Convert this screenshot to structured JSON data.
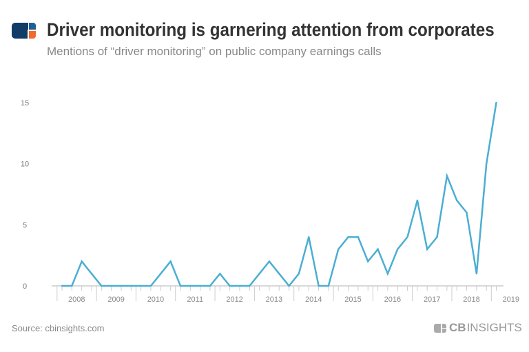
{
  "header": {
    "title": "Driver monitoring is garnering attention from corporates",
    "subtitle": "Mentions of “driver monitoring” on public company earnings calls"
  },
  "footer": {
    "source": "Source: cbinsights.com",
    "brand_bold": "CB",
    "brand_light": "INSIGHTS"
  },
  "colors": {
    "line": "#4aaed3",
    "logo_navy": "#123c68",
    "logo_blue": "#1f5f98",
    "logo_orange": "#f26a2e"
  },
  "chart_data": {
    "type": "line",
    "title": "Driver monitoring is garnering attention from corporates",
    "subtitle": "Mentions of “driver monitoring” on public company earnings calls",
    "xlabel": "",
    "ylabel": "",
    "frequency": "quarterly",
    "x_tick_labels": [
      "2008",
      "2009",
      "2010",
      "2011",
      "2012",
      "2013",
      "2014",
      "2015",
      "2016",
      "2017",
      "2018",
      "2019"
    ],
    "y_ticks": [
      0,
      5,
      10,
      15
    ],
    "ylim": [
      0,
      15
    ],
    "grid": false,
    "series": [
      {
        "values": [
          0,
          0,
          2,
          1,
          0,
          0,
          0,
          0,
          0,
          0,
          1,
          2,
          0,
          0,
          0,
          0,
          1,
          0,
          0,
          0,
          1,
          2,
          1,
          0,
          1,
          4,
          0,
          0,
          3,
          4,
          4,
          2,
          3,
          1,
          3,
          4,
          7,
          3,
          4,
          9,
          7,
          6,
          1,
          10,
          15
        ]
      }
    ]
  }
}
